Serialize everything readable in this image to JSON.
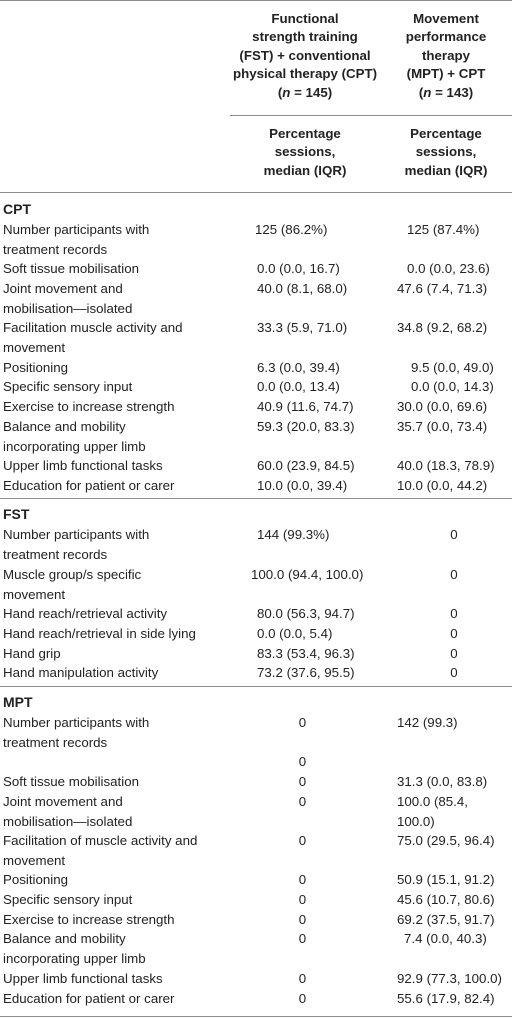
{
  "header": {
    "col1": {
      "line1": "Functional",
      "line2": "strength training",
      "line3": "(FST) + conventional",
      "line4": "physical therapy (CPT)",
      "n_prefix": "(",
      "n_var": "n",
      "n_rest": " = 145)"
    },
    "col2": {
      "line1": "Movement",
      "line2": "performance",
      "line3": "therapy",
      "line4": "(MPT) + CPT",
      "n_prefix": "(",
      "n_var": "n",
      "n_rest": " = 143)"
    },
    "sub1": {
      "line1": "Percentage",
      "line2": "sessions,",
      "line3": "median (IQR)"
    },
    "sub2": {
      "line1": "Percentage",
      "line2": "sessions,",
      "line3": "median (IQR)"
    }
  },
  "sections": {
    "cpt": "CPT",
    "fst": "FST",
    "mpt": "MPT"
  },
  "cpt_rows": [
    {
      "label": [
        "Number participants with",
        "treatment records"
      ],
      "v1": "125 (86.2%)",
      "v2": "125 (87.4%)"
    },
    {
      "label": [
        "Soft tissue mobilisation"
      ],
      "v1": "0.0 (0.0, 16.7)",
      "v2": "0.0 (0.0, 23.6)"
    },
    {
      "label": [
        "Joint movement and",
        "mobilisation—isolated"
      ],
      "v1": "40.0 (8.1, 68.0)",
      "v2": "47.6 (7.4, 71.3)"
    },
    {
      "label": [
        "Facilitation muscle activity and",
        "movement"
      ],
      "v1": "33.3 (5.9, 71.0)",
      "v2": "34.8 (9.2, 68.2)"
    },
    {
      "label": [
        "Positioning"
      ],
      "v1": "6.3 (0.0, 39.4)",
      "v2": "9.5 (0.0, 49.0)"
    },
    {
      "label": [
        "Specific sensory input"
      ],
      "v1": "0.0 (0.0, 13.4)",
      "v2": "0.0 (0.0, 14.3)"
    },
    {
      "label": [
        "Exercise to increase strength"
      ],
      "v1": "40.9 (11.6, 74.7)",
      "v2": "30.0 (0.0, 69.6)"
    },
    {
      "label": [
        "Balance and mobility",
        "incorporating upper limb"
      ],
      "v1": "59.3 (20.0, 83.3)",
      "v2": "35.7 (0.0, 73.4)"
    },
    {
      "label": [
        "Upper limb functional tasks"
      ],
      "v1": "60.0 (23.9, 84.5)",
      "v2": "40.0 (18.3, 78.9)"
    },
    {
      "label": [
        "Education for patient or carer"
      ],
      "v1": "10.0 (0.0, 39.4)",
      "v2": "10.0 (0.0, 44.2)"
    }
  ],
  "fst_rows": [
    {
      "label": [
        "Number participants with",
        "treatment records"
      ],
      "v1": "144 (99.3%)",
      "v2": "0"
    },
    {
      "label": [
        "Muscle group/s specific",
        "movement"
      ],
      "v1": "100.0 (94.4, 100.0)",
      "v2": "0"
    },
    {
      "label": [
        "Hand reach/retrieval activity"
      ],
      "v1": "80.0 (56.3, 94.7)",
      "v2": "0"
    },
    {
      "label": [
        "Hand reach/retrieval in side lying"
      ],
      "v1": "0.0 (0.0, 5.4)",
      "v2": "0"
    },
    {
      "label": [
        "Hand grip"
      ],
      "v1": "83.3 (53.4, 96.3)",
      "v2": "0"
    },
    {
      "label": [
        "Hand manipulation activity"
      ],
      "v1": "73.2 (37.6, 95.5)",
      "v2": "0"
    }
  ],
  "mpt_rows": [
    {
      "label": [
        "Number participants with",
        "treatment records"
      ],
      "v1": "0",
      "v2": "142 (99.3)",
      "extra": "0"
    },
    {
      "label": [
        "Soft tissue mobilisation"
      ],
      "v1": "0",
      "v2": "31.3 (0.0, 83.8)"
    },
    {
      "label": [
        "Joint movement and",
        "mobilisation—isolated"
      ],
      "v1": "0",
      "v2": [
        "100.0 (85.4,",
        "100.0)"
      ]
    },
    {
      "label": [
        "Facilitation of muscle activity and",
        "movement"
      ],
      "v1": "0",
      "v2": "75.0 (29.5, 96.4)"
    },
    {
      "label": [
        "Positioning"
      ],
      "v1": "0",
      "v2": "50.9 (15.1, 91.2)"
    },
    {
      "label": [
        "Specific sensory input"
      ],
      "v1": "0",
      "v2": "45.6 (10.7, 80.6)"
    },
    {
      "label": [
        "Exercise to increase strength"
      ],
      "v1": "0",
      "v2": "69.2 (37.5, 91.7)"
    },
    {
      "label": [
        "Balance and mobility",
        "incorporating upper limb"
      ],
      "v1": "0",
      "v2": "7.4 (0.0, 40.3)"
    },
    {
      "label": [
        "Upper limb functional tasks"
      ],
      "v1": "0",
      "v2": "92.9 (77.3, 100.0)"
    },
    {
      "label": [
        "Education for patient or carer"
      ],
      "v1": "0",
      "v2": "55.6 (17.9, 82.4)"
    }
  ]
}
